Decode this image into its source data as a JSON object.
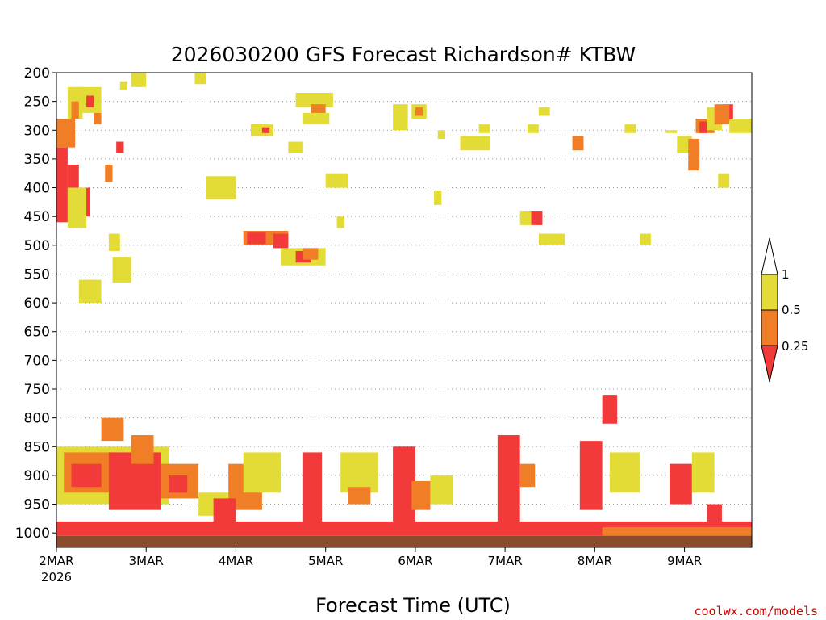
{
  "chart_data": {
    "type": "heatmap",
    "title": "2026030200 GFS Forecast Richardson# KTBW",
    "xlabel": "Forecast Time (UTC)",
    "ylabel": "",
    "credit": "coolwx.com/models",
    "x_ticks": [
      {
        "label": "2MAR",
        "sub": "2026"
      },
      {
        "label": "3MAR"
      },
      {
        "label": "4MAR"
      },
      {
        "label": "5MAR"
      },
      {
        "label": "6MAR"
      },
      {
        "label": "7MAR"
      },
      {
        "label": "8MAR"
      },
      {
        "label": "9MAR"
      }
    ],
    "x_range_hours": [
      0,
      186
    ],
    "y_axis": "pressure_hPa",
    "y_range": [
      1025,
      200
    ],
    "y_ticks": [
      200,
      250,
      300,
      350,
      400,
      450,
      500,
      550,
      600,
      650,
      700,
      750,
      800,
      850,
      900,
      950,
      1000
    ],
    "grid": "dotted horizontal lines at pressure levels",
    "surface_band_color": "#8b4c2e",
    "color_scale": [
      {
        "range": "< 0.25",
        "color": "#f23a3a"
      },
      {
        "range": "0.25-0.5",
        "color": "#f07e26"
      },
      {
        "range": "0.5-1",
        "color": "#e3dc36"
      },
      {
        "range": "> 1",
        "color": "#ffffff"
      }
    ],
    "legend_labels": [
      "1",
      "0.5",
      "0.25"
    ],
    "legend_position": "right",
    "cells": [
      {
        "t0": 0,
        "t1": 5,
        "p0": 280,
        "p1": 330,
        "cat": "orange"
      },
      {
        "t0": 3,
        "t1": 7,
        "p0": 225,
        "p1": 280,
        "cat": "yellow"
      },
      {
        "t0": 5,
        "t1": 12,
        "p0": 225,
        "p1": 270,
        "cat": "yellow"
      },
      {
        "t0": 4,
        "t1": 6,
        "p0": 250,
        "p1": 280,
        "cat": "orange"
      },
      {
        "t0": 8,
        "t1": 10,
        "p0": 240,
        "p1": 260,
        "cat": "red"
      },
      {
        "t0": 10,
        "t1": 12,
        "p0": 270,
        "p1": 290,
        "cat": "orange"
      },
      {
        "t0": 0,
        "t1": 3,
        "p0": 330,
        "p1": 460,
        "cat": "red"
      },
      {
        "t0": 3,
        "t1": 6,
        "p0": 360,
        "p1": 400,
        "cat": "red"
      },
      {
        "t0": 6,
        "t1": 9,
        "p0": 400,
        "p1": 450,
        "cat": "red"
      },
      {
        "t0": 3,
        "t1": 8,
        "p0": 400,
        "p1": 470,
        "cat": "yellow"
      },
      {
        "t0": 13,
        "t1": 15,
        "p0": 360,
        "p1": 390,
        "cat": "orange"
      },
      {
        "t0": 16,
        "t1": 18,
        "p0": 320,
        "p1": 340,
        "cat": "red"
      },
      {
        "t0": 17,
        "t1": 19,
        "p0": 215,
        "p1": 230,
        "cat": "yellow"
      },
      {
        "t0": 6,
        "t1": 12,
        "p0": 560,
        "p1": 600,
        "cat": "yellow"
      },
      {
        "t0": 15,
        "t1": 20,
        "p0": 520,
        "p1": 565,
        "cat": "yellow"
      },
      {
        "t0": 14,
        "t1": 17,
        "p0": 480,
        "p1": 510,
        "cat": "yellow"
      },
      {
        "t0": 20,
        "t1": 24,
        "p0": 200,
        "p1": 225,
        "cat": "yellow"
      },
      {
        "t0": 37,
        "t1": 40,
        "p0": 200,
        "p1": 220,
        "cat": "yellow"
      },
      {
        "t0": 40,
        "t1": 48,
        "p0": 380,
        "p1": 420,
        "cat": "yellow"
      },
      {
        "t0": 52,
        "t1": 55,
        "p0": 290,
        "p1": 310,
        "cat": "orange"
      },
      {
        "t0": 52,
        "t1": 58,
        "p0": 290,
        "p1": 310,
        "cat": "yellow"
      },
      {
        "t0": 55,
        "t1": 57,
        "p0": 295,
        "p1": 305,
        "cat": "red"
      },
      {
        "t0": 62,
        "t1": 66,
        "p0": 320,
        "p1": 340,
        "cat": "yellow"
      },
      {
        "t0": 64,
        "t1": 74,
        "p0": 235,
        "p1": 260,
        "cat": "yellow"
      },
      {
        "t0": 68,
        "t1": 72,
        "p0": 255,
        "p1": 285,
        "cat": "orange"
      },
      {
        "t0": 66,
        "t1": 73,
        "p0": 270,
        "p1": 290,
        "cat": "yellow"
      },
      {
        "t0": 50,
        "t1": 62,
        "p0": 475,
        "p1": 500,
        "cat": "orange"
      },
      {
        "t0": 51,
        "t1": 56,
        "p0": 478,
        "p1": 498,
        "cat": "red"
      },
      {
        "t0": 58,
        "t1": 62,
        "p0": 480,
        "p1": 505,
        "cat": "red"
      },
      {
        "t0": 60,
        "t1": 72,
        "p0": 505,
        "p1": 535,
        "cat": "yellow"
      },
      {
        "t0": 64,
        "t1": 68,
        "p0": 510,
        "p1": 530,
        "cat": "red"
      },
      {
        "t0": 66,
        "t1": 70,
        "p0": 505,
        "p1": 525,
        "cat": "orange"
      },
      {
        "t0": 72,
        "t1": 78,
        "p0": 375,
        "p1": 400,
        "cat": "yellow"
      },
      {
        "t0": 75,
        "t1": 77,
        "p0": 450,
        "p1": 470,
        "cat": "yellow"
      },
      {
        "t0": 90,
        "t1": 94,
        "p0": 255,
        "p1": 300,
        "cat": "yellow"
      },
      {
        "t0": 95,
        "t1": 99,
        "p0": 255,
        "p1": 280,
        "cat": "yellow"
      },
      {
        "t0": 96,
        "t1": 98,
        "p0": 260,
        "p1": 275,
        "cat": "orange"
      },
      {
        "t0": 102,
        "t1": 104,
        "p0": 300,
        "p1": 315,
        "cat": "yellow"
      },
      {
        "t0": 101,
        "t1": 103,
        "p0": 405,
        "p1": 430,
        "cat": "yellow"
      },
      {
        "t0": 108,
        "t1": 116,
        "p0": 310,
        "p1": 335,
        "cat": "yellow"
      },
      {
        "t0": 113,
        "t1": 116,
        "p0": 290,
        "p1": 305,
        "cat": "yellow"
      },
      {
        "t0": 126,
        "t1": 129,
        "p0": 290,
        "p1": 305,
        "cat": "yellow"
      },
      {
        "t0": 129,
        "t1": 132,
        "p0": 260,
        "p1": 275,
        "cat": "yellow"
      },
      {
        "t0": 124,
        "t1": 128,
        "p0": 440,
        "p1": 465,
        "cat": "yellow"
      },
      {
        "t0": 127,
        "t1": 130,
        "p0": 440,
        "p1": 465,
        "cat": "red"
      },
      {
        "t0": 129,
        "t1": 136,
        "p0": 480,
        "p1": 500,
        "cat": "yellow"
      },
      {
        "t0": 138,
        "t1": 141,
        "p0": 310,
        "p1": 335,
        "cat": "orange"
      },
      {
        "t0": 152,
        "t1": 155,
        "p0": 290,
        "p1": 305,
        "cat": "yellow"
      },
      {
        "t0": 156,
        "t1": 159,
        "p0": 480,
        "p1": 500,
        "cat": "yellow"
      },
      {
        "t0": 163,
        "t1": 166,
        "p0": 300,
        "p1": 305,
        "cat": "yellow"
      },
      {
        "t0": 166,
        "t1": 170,
        "p0": 310,
        "p1": 340,
        "cat": "yellow"
      },
      {
        "t0": 169,
        "t1": 172,
        "p0": 315,
        "p1": 370,
        "cat": "orange"
      },
      {
        "t0": 171,
        "t1": 176,
        "p0": 280,
        "p1": 305,
        "cat": "orange"
      },
      {
        "t0": 172,
        "t1": 174,
        "p0": 285,
        "p1": 305,
        "cat": "red"
      },
      {
        "t0": 174,
        "t1": 178,
        "p0": 260,
        "p1": 300,
        "cat": "yellow"
      },
      {
        "t0": 178,
        "t1": 181,
        "p0": 255,
        "p1": 285,
        "cat": "red"
      },
      {
        "t0": 176,
        "t1": 180,
        "p0": 255,
        "p1": 290,
        "cat": "orange"
      },
      {
        "t0": 180,
        "t1": 186,
        "p0": 280,
        "p1": 305,
        "cat": "yellow"
      },
      {
        "t0": 177,
        "t1": 180,
        "p0": 375,
        "p1": 400,
        "cat": "yellow"
      },
      {
        "t0": 0,
        "t1": 30,
        "p0": 850,
        "p1": 950,
        "cat": "yellow"
      },
      {
        "t0": 2,
        "t1": 15,
        "p0": 860,
        "p1": 930,
        "cat": "orange"
      },
      {
        "t0": 4,
        "t1": 12,
        "p0": 880,
        "p1": 920,
        "cat": "red"
      },
      {
        "t0": 12,
        "t1": 18,
        "p0": 800,
        "p1": 840,
        "cat": "orange"
      },
      {
        "t0": 14,
        "t1": 28,
        "p0": 860,
        "p1": 960,
        "cat": "red"
      },
      {
        "t0": 20,
        "t1": 26,
        "p0": 830,
        "p1": 880,
        "cat": "orange"
      },
      {
        "t0": 28,
        "t1": 38,
        "p0": 880,
        "p1": 940,
        "cat": "orange"
      },
      {
        "t0": 30,
        "t1": 35,
        "p0": 900,
        "p1": 930,
        "cat": "red"
      },
      {
        "t0": 38,
        "t1": 46,
        "p0": 930,
        "p1": 970,
        "cat": "yellow"
      },
      {
        "t0": 46,
        "t1": 55,
        "p0": 880,
        "p1": 960,
        "cat": "orange"
      },
      {
        "t0": 50,
        "t1": 60,
        "p0": 860,
        "p1": 930,
        "cat": "yellow"
      },
      {
        "t0": 42,
        "t1": 48,
        "p0": 940,
        "p1": 990,
        "cat": "red"
      },
      {
        "t0": 66,
        "t1": 71,
        "p0": 860,
        "p1": 1000,
        "cat": "red"
      },
      {
        "t0": 76,
        "t1": 86,
        "p0": 860,
        "p1": 930,
        "cat": "yellow"
      },
      {
        "t0": 78,
        "t1": 84,
        "p0": 920,
        "p1": 950,
        "cat": "orange"
      },
      {
        "t0": 90,
        "t1": 96,
        "p0": 850,
        "p1": 1000,
        "cat": "red"
      },
      {
        "t0": 95,
        "t1": 100,
        "p0": 910,
        "p1": 960,
        "cat": "orange"
      },
      {
        "t0": 100,
        "t1": 106,
        "p0": 900,
        "p1": 950,
        "cat": "yellow"
      },
      {
        "t0": 118,
        "t1": 124,
        "p0": 830,
        "p1": 1000,
        "cat": "red"
      },
      {
        "t0": 124,
        "t1": 128,
        "p0": 880,
        "p1": 920,
        "cat": "orange"
      },
      {
        "t0": 140,
        "t1": 146,
        "p0": 840,
        "p1": 960,
        "cat": "red"
      },
      {
        "t0": 146,
        "t1": 150,
        "p0": 760,
        "p1": 810,
        "cat": "red"
      },
      {
        "t0": 148,
        "t1": 156,
        "p0": 860,
        "p1": 930,
        "cat": "yellow"
      },
      {
        "t0": 164,
        "t1": 170,
        "p0": 880,
        "p1": 950,
        "cat": "red"
      },
      {
        "t0": 170,
        "t1": 176,
        "p0": 860,
        "p1": 930,
        "cat": "yellow"
      },
      {
        "t0": 174,
        "t1": 178,
        "p0": 950,
        "p1": 990,
        "cat": "red"
      },
      {
        "t0": 0,
        "t1": 186,
        "p0": 980,
        "p1": 1005,
        "cat": "red"
      },
      {
        "t0": 146,
        "t1": 186,
        "p0": 990,
        "p1": 1005,
        "cat": "orange"
      }
    ]
  }
}
